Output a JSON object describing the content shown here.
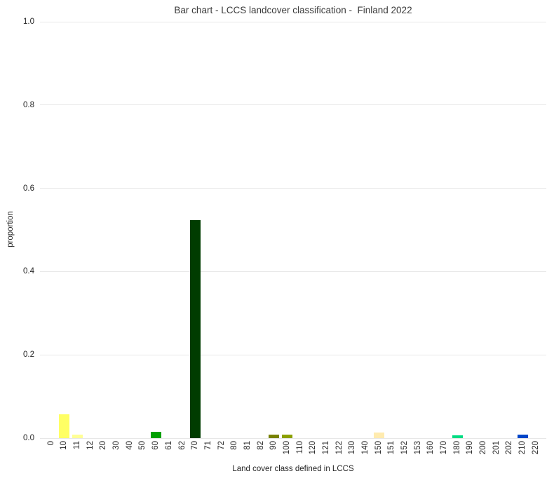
{
  "chart_data": {
    "type": "bar",
    "title": "Bar chart - LCCS landcover classification -  Finland 2022",
    "xlabel": "Land cover class defined in LCCS",
    "ylabel": "proportion",
    "categories": [
      "0",
      "10",
      "11",
      "12",
      "20",
      "30",
      "40",
      "50",
      "60",
      "61",
      "62",
      "70",
      "71",
      "72",
      "80",
      "81",
      "82",
      "90",
      "100",
      "110",
      "120",
      "121",
      "122",
      "130",
      "140",
      "150",
      "151",
      "152",
      "153",
      "160",
      "170",
      "180",
      "190",
      "200",
      "201",
      "202",
      "210",
      "220"
    ],
    "values": [
      0,
      0.058,
      0.009,
      0,
      0,
      0,
      0,
      0,
      0.016,
      0,
      0,
      0.523,
      0,
      0,
      0,
      0,
      0,
      0.008,
      0.008,
      0,
      0,
      0,
      0,
      0,
      0,
      0.013,
      0,
      0,
      0,
      0,
      0,
      0.006,
      0,
      0,
      0,
      0,
      0.009,
      0
    ],
    "bar_colors": {
      "10": "#FFFF64",
      "11": "#FFFF96",
      "60": "#00A000",
      "70": "#003C00",
      "90": "#788200",
      "100": "#8CA000",
      "150": "#FFEBAF",
      "180": "#00DC82",
      "210": "#0046C8"
    },
    "default_bar_color": "#cccccc",
    "yticks": [
      0.0,
      0.2,
      0.4,
      0.6,
      0.8,
      1.0
    ],
    "ylim": [
      0,
      1
    ],
    "grid": true,
    "gridline_color": "#e7e7e7",
    "legend_position": "none"
  }
}
